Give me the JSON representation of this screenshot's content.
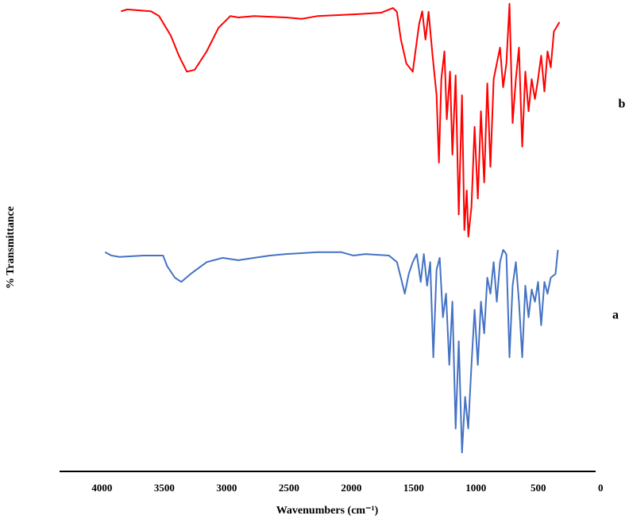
{
  "chart_data": {
    "type": "line",
    "xlabel": "Wavenumbers (cm⁻¹)",
    "ylabel": "% Transmittance",
    "xlim": [
      4340,
      40
    ],
    "xticks": [
      4000,
      3500,
      3000,
      2500,
      2000,
      1500,
      1000,
      500,
      0
    ],
    "ylim": [
      0,
      100
    ],
    "series": [
      {
        "name": "b",
        "color": "#ff0000",
        "x": [
          3847,
          3796,
          3606,
          3542,
          3447,
          3383,
          3319,
          3256,
          3160,
          3065,
          2970,
          2906,
          2779,
          2524,
          2397,
          2270,
          1952,
          1761,
          1666,
          1634,
          1602,
          1558,
          1507,
          1456,
          1431,
          1405,
          1380,
          1348,
          1316,
          1297,
          1278,
          1253,
          1234,
          1208,
          1189,
          1163,
          1138,
          1112,
          1093,
          1074,
          1061,
          1036,
          1011,
          985,
          960,
          934,
          909,
          884,
          858,
          833,
          807,
          782,
          756,
          731,
          706,
          680,
          655,
          629,
          604,
          578,
          553,
          527,
          502,
          477,
          451,
          426,
          400,
          375,
          330
        ],
        "values": [
          97.6,
          98.0,
          97.6,
          96.6,
          92.4,
          88.2,
          84.8,
          85.2,
          89.1,
          94.1,
          96.6,
          96.3,
          96.6,
          96.3,
          96.0,
          96.6,
          97.0,
          97.3,
          98.3,
          97.5,
          91.6,
          86.5,
          84.8,
          94.9,
          97.6,
          91.6,
          97.5,
          88.2,
          79.8,
          65.5,
          83.2,
          89.1,
          74.7,
          84.8,
          67.2,
          84.0,
          54.5,
          79.8,
          51.2,
          59.6,
          49.8,
          56.2,
          73.1,
          57.9,
          76.4,
          61.3,
          82.3,
          64.6,
          83.2,
          86.5,
          89.9,
          81.5,
          86.5,
          99.2,
          73.9,
          83.2,
          89.9,
          68.9,
          84.8,
          76.4,
          83.2,
          79.0,
          83.2,
          88.2,
          80.6,
          89.1,
          85.7,
          93.3,
          95.3
        ]
      },
      {
        "name": "a",
        "color": "#4472c4",
        "x": [
          3975,
          3924,
          3860,
          3669,
          3510,
          3478,
          3415,
          3364,
          3288,
          3160,
          3033,
          2906,
          2779,
          2652,
          2524,
          2270,
          2079,
          1984,
          1888,
          1698,
          1634,
          1602,
          1571,
          1539,
          1507,
          1475,
          1443,
          1418,
          1392,
          1367,
          1342,
          1316,
          1291,
          1265,
          1240,
          1214,
          1189,
          1163,
          1138,
          1112,
          1087,
          1062,
          1036,
          1011,
          985,
          960,
          934,
          909,
          884,
          858,
          833,
          807,
          782,
          756,
          731,
          706,
          680,
          655,
          629,
          604,
          578,
          553,
          527,
          502,
          477,
          451,
          426,
          400,
          362,
          343
        ],
        "values": [
          46.5,
          45.8,
          45.5,
          45.8,
          45.8,
          43.6,
          41.1,
          40.2,
          41.9,
          44.4,
          45.3,
          44.8,
          45.3,
          45.8,
          46.1,
          46.5,
          46.5,
          45.8,
          46.1,
          45.8,
          44.4,
          41.1,
          37.7,
          41.9,
          44.4,
          46.1,
          40.2,
          46.1,
          39.4,
          44.4,
          24.2,
          42.8,
          45.3,
          32.7,
          37.7,
          22.6,
          36.0,
          9.1,
          27.6,
          4.0,
          15.8,
          9.1,
          22.6,
          34.3,
          22.6,
          36.0,
          29.3,
          41.1,
          37.7,
          44.4,
          36.0,
          44.4,
          47.0,
          46.1,
          24.2,
          39.4,
          44.4,
          36.0,
          24.2,
          39.4,
          32.7,
          38.6,
          36.0,
          40.2,
          31.0,
          40.2,
          37.7,
          41.1,
          41.9,
          47.0
        ]
      }
    ]
  }
}
